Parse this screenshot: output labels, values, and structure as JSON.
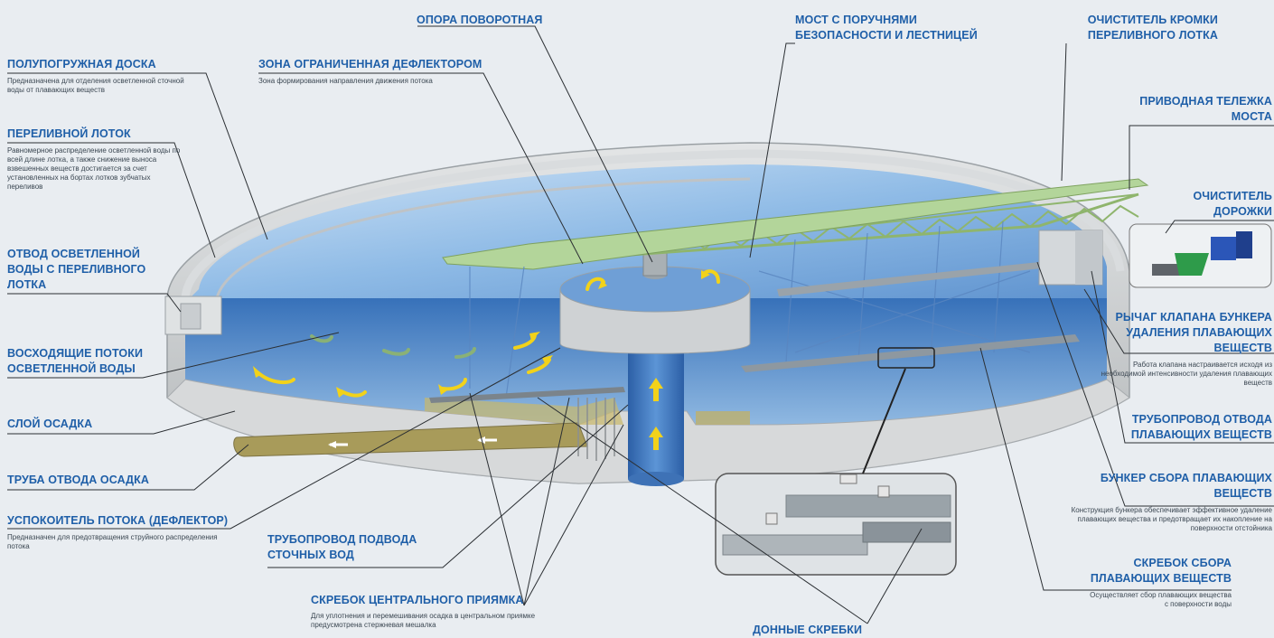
{
  "labels": {
    "opora": {
      "title": "ОПОРА ПОВОРОТНАЯ"
    },
    "most": {
      "title": "МОСТ С ПОРУЧНЯМИ БЕЗОПАСНОСТИ И ЛЕСТНИЦЕЙ"
    },
    "ochistitel_kromki": {
      "title": "ОЧИСТИТЕЛЬ КРОМКИ ПЕРЕЛИВНОГО ЛОТКА"
    },
    "polupogruzhnaya": {
      "title": "ПОЛУПОГРУЖНАЯ ДОСКА",
      "desc": "Предназначена для отделения осветленной сточной воды от плавающих веществ"
    },
    "zona": {
      "title": "ЗОНА ОГРАНИЧЕННАЯ ДЕФЛЕКТОРОМ",
      "desc": "Зона формирования направления движения потока"
    },
    "privodnaya": {
      "title": "ПРИВОДНАЯ ТЕЛЕЖКА МОСТА"
    },
    "perelivnoy": {
      "title": "ПЕРЕЛИВНОЙ ЛОТОК",
      "desc": "Равномерное распределение осветленной воды по всей длине лотка, а также снижение выноса взвешенных веществ достигается за счет установленных на бортах лотков зубчатых переливов"
    },
    "ochistitel_dorozhki": {
      "title": "ОЧИСТИТЕЛЬ ДОРОЖКИ"
    },
    "otvod": {
      "title": "ОТВОД ОСВЕТЛЕННОЙ ВОДЫ С ПЕРЕЛИВНОГО ЛОТКА"
    },
    "rychag": {
      "title": "РЫЧАГ КЛАПАНА БУНКЕРА УДАЛЕНИЯ ПЛАВАЮЩИХ ВЕЩЕСТВ",
      "desc": "Работа клапана настраивается исходя из необходимой интенсивности удаления плавающих веществ"
    },
    "voskhodyashchie": {
      "title": "ВОСХОДЯЩИЕ ПОТОКИ ОСВЕТЛЕННОЙ ВОДЫ"
    },
    "sloy": {
      "title": "СЛОЙ ОСАДКА"
    },
    "truboprovod_otvoda": {
      "title": "ТРУБОПРОВОД ОТВОДА ПЛАВАЮЩИХ ВЕЩЕСТВ"
    },
    "truba": {
      "title": "ТРУБА ОТВОДА ОСАДКА"
    },
    "bunker": {
      "title": "БУНКЕР СБОРА ПЛАВАЮЩИХ ВЕЩЕСТВ",
      "desc": "Конструкция бункера обеспечивает эффективное удаление плавающих вещества и предотвращает их накопление на поверхности отстойника"
    },
    "uspokoitel": {
      "title": "УСПОКОИТЕЛЬ ПОТОКА (ДЕФЛЕКТОР)",
      "desc": "Предназначен для предотвращения струйного распределения потока"
    },
    "truboprovod_podvoda": {
      "title": "ТРУБОПРОВОД ПОДВОДА СТОЧНЫХ ВОД"
    },
    "skrebok_sbora": {
      "title": "СКРЕБОК СБОРА ПЛАВАЮЩИХ ВЕЩЕСТВ",
      "desc": "Осуществляет сбор плавающих вещества с поверхности воды"
    },
    "skrebok_central": {
      "title": "СКРЕБОК ЦЕНТРАЛЬНОГО ПРИЯМКА",
      "desc": "Для уплотнения и перемешивания осадка в центральном приямке предусмотрена стержневая мешалка"
    },
    "donnye": {
      "title": "ДОННЫЕ СКРЕБКИ"
    }
  },
  "colors": {
    "title": "#1f5fa8",
    "water": "#3a78c0",
    "concrete": "#c9ccce",
    "bridge": "#9fc77f",
    "arrow": "#f2d21a"
  }
}
